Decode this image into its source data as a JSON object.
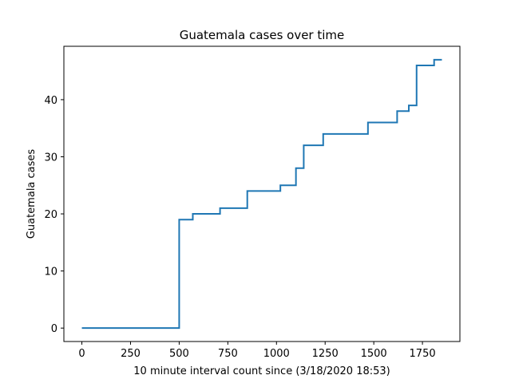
{
  "chart_data": {
    "type": "line",
    "step": "post",
    "title": "Guatemala cases over time",
    "xlabel": "10 minute interval count since (3/18/2020 18:53)",
    "ylabel": "Guatemala cases",
    "xlim": [
      -92.5,
      1942.5
    ],
    "ylim": [
      -2.35,
      49.35
    ],
    "xticks": [
      0,
      250,
      500,
      750,
      1000,
      1250,
      1500,
      1750
    ],
    "yticks": [
      0,
      10,
      20,
      30,
      40
    ],
    "grid": false,
    "line_color": "#1f77b4",
    "series": [
      {
        "x": [
          0,
          500,
          570,
          710,
          850,
          1020,
          1100,
          1140,
          1240,
          1470,
          1620,
          1680,
          1720,
          1810,
          1850
        ],
        "y": [
          0,
          19,
          20,
          21,
          24,
          25,
          28,
          32,
          34,
          36,
          38,
          39,
          46,
          47,
          47
        ]
      }
    ]
  }
}
